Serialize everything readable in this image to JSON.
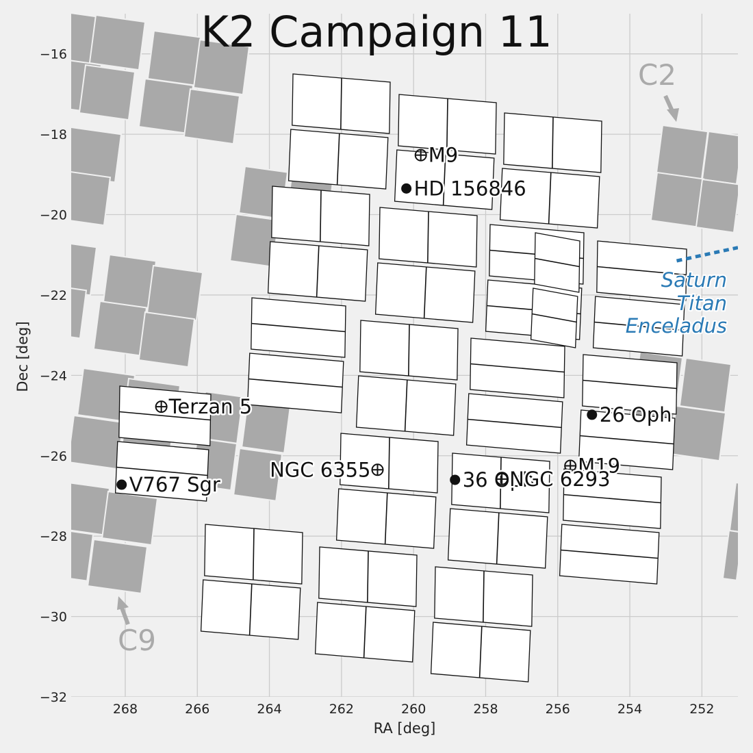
{
  "chart_data": {
    "type": "scatter",
    "title": "K2 Campaign 11",
    "xlabel": "RA [deg]",
    "ylabel": "Dec [deg]",
    "xlim": [
      269.5,
      251.0
    ],
    "ylim": [
      -32,
      -15
    ],
    "x_ticks": [
      268,
      266,
      264,
      262,
      260,
      258,
      256,
      254,
      252
    ],
    "y_ticks": [
      -16,
      -18,
      -20,
      -22,
      -24,
      -26,
      -28,
      -30,
      -32
    ],
    "x_tick_labels": [
      "268",
      "266",
      "264",
      "262",
      "260",
      "258",
      "256",
      "254",
      "252"
    ],
    "y_tick_labels": [
      "−16",
      "−18",
      "−20",
      "−22",
      "−24",
      "−26",
      "−28",
      "−30",
      "−32"
    ],
    "grid": true,
    "colors": {
      "background": "#f0f0f0",
      "outer_channels": "#a9a9a9",
      "c11_channels": "#ffffff",
      "planet_track": "#2a7ab5",
      "campaign_labels": "#aaaaaa"
    },
    "targets": [
      {
        "name": "M9",
        "ra": 259.8,
        "dec": -18.52,
        "marker": "cluster"
      },
      {
        "name": "HD 156846",
        "ra": 260.2,
        "dec": -19.35,
        "marker": "star"
      },
      {
        "name": "Terzan 5",
        "ra": 267.0,
        "dec": -24.78,
        "marker": "cluster"
      },
      {
        "name": "26 Oph",
        "ra": 255.05,
        "dec": -24.98,
        "marker": "star"
      },
      {
        "name": "M19",
        "ra": 255.65,
        "dec": -26.25,
        "marker": "cluster"
      },
      {
        "name": "NGC 6355",
        "ra": 261.0,
        "dec": -26.35,
        "marker": "cluster"
      },
      {
        "name": "36 Oph",
        "ra": 258.85,
        "dec": -26.6,
        "marker": "star"
      },
      {
        "name": "NGC 6293",
        "ra": 257.55,
        "dec": -26.58,
        "marker": "cluster"
      },
      {
        "name": "V767 Sgr",
        "ra": 268.1,
        "dec": -26.72,
        "marker": "star"
      }
    ],
    "campaign_labels": [
      "C2",
      "C9"
    ],
    "planets_label": [
      "Saturn",
      "Titan",
      "Enceladus"
    ],
    "planet_track": [
      [
        252.7,
        -21.15
      ],
      [
        251.0,
        -20.82
      ]
    ]
  }
}
